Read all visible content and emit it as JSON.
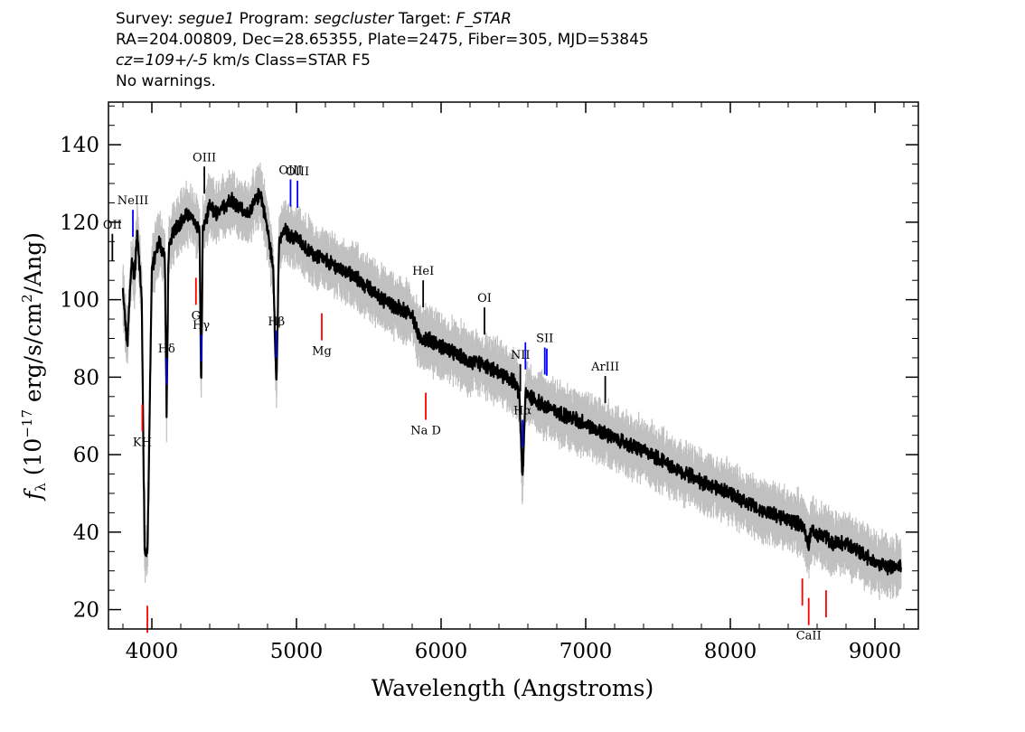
{
  "header": {
    "survey_label": "Survey:",
    "survey": "segue1",
    "program_label": "Program:",
    "program": "segcluster",
    "target_label": "Target:",
    "target": "F_STAR",
    "line2": "RA=204.00809, Dec=28.65355, Plate=2475, Fiber=305, MJD=53845",
    "cz": "cz=109+/-5",
    "line3_rest": " km/s Class=STAR F5",
    "line4": "No warnings."
  },
  "colors": {
    "flux": "#000000",
    "error": "#c0c0c0",
    "emission": "#0000ff",
    "absorption": "#ff0000",
    "other": "#000000"
  },
  "chart_data": {
    "type": "line",
    "title": "",
    "xlabel": "Wavelength (Angstroms)",
    "ylabel_prefix": "f",
    "ylabel_sub": "λ",
    "ylabel_main": " (10",
    "ylabel_exp": "−17",
    "ylabel_mid": " erg/s/cm",
    "ylabel_exp2": "2",
    "ylabel_end": "/Ang)",
    "xlim": [
      3700,
      9300
    ],
    "ylim": [
      15,
      151
    ],
    "xticks": [
      4000,
      5000,
      6000,
      7000,
      8000,
      9000
    ],
    "yticks": [
      20,
      40,
      60,
      80,
      100,
      120,
      140
    ],
    "series": [
      {
        "role": "flux",
        "x": [
          3800,
          3830,
          3860,
          3880,
          3900,
          3930,
          3950,
          3970,
          4000,
          4050,
          4090,
          4102,
          4115,
          4150,
          4200,
          4250,
          4300,
          4330,
          4341,
          4352,
          4400,
          4450,
          4500,
          4550,
          4600,
          4650,
          4700,
          4750,
          4800,
          4840,
          4861,
          4880,
          4920,
          4960,
          5000,
          5100,
          5200,
          5300,
          5400,
          5500,
          5600,
          5700,
          5800,
          5850,
          5900,
          6000,
          6100,
          6200,
          6300,
          6400,
          6500,
          6540,
          6563,
          6585,
          6650,
          6800,
          7000,
          7200,
          7400,
          7600,
          7800,
          8000,
          8200,
          8400,
          8500,
          8542,
          8560,
          8600,
          8662,
          8700,
          8800,
          8900,
          9000,
          9100,
          9180
        ],
        "y": [
          102,
          88,
          110,
          106,
          118,
          100,
          35,
          35,
          108,
          115,
          111,
          70,
          112,
          118,
          120,
          122,
          120,
          118,
          76,
          118,
          124,
          122,
          124,
          126,
          124,
          122,
          124,
          128,
          118,
          108,
          77,
          115,
          118,
          116,
          116,
          112,
          110,
          108,
          106,
          103,
          100,
          98,
          96,
          90,
          90,
          88,
          86,
          84,
          83,
          81,
          79,
          76,
          54,
          76,
          74,
          71,
          68,
          64,
          61,
          57,
          53,
          50,
          46,
          43,
          42,
          37,
          41,
          39,
          39,
          37,
          37,
          35,
          32,
          31,
          31
        ]
      }
    ],
    "lines": [
      {
        "label": "OII",
        "x": 3727,
        "kind": "other"
      },
      {
        "label": "NeIII",
        "x": 3869,
        "kind": "emission"
      },
      {
        "label": "K",
        "x": 3934,
        "kind": "absorption"
      },
      {
        "label": "H",
        "x": 3969,
        "kind": "absorption"
      },
      {
        "label": "Hδ",
        "x": 4102,
        "kind": "emission"
      },
      {
        "label": "G",
        "x": 4305,
        "kind": "absorption"
      },
      {
        "label": "Hγ",
        "x": 4341,
        "kind": "emission"
      },
      {
        "label": "OIII",
        "x": 4363,
        "kind": "other"
      },
      {
        "label": "Hβ",
        "x": 4861,
        "kind": "emission"
      },
      {
        "label": "OIII",
        "x": 4959,
        "kind": "emission"
      },
      {
        "label": "OIII",
        "x": 5007,
        "kind": "emission"
      },
      {
        "label": "Mg",
        "x": 5175,
        "kind": "absorption"
      },
      {
        "label": "HeI",
        "x": 5876,
        "kind": "other"
      },
      {
        "label": "Na D",
        "x": 5894,
        "kind": "absorption"
      },
      {
        "label": "OI",
        "x": 6300,
        "kind": "other"
      },
      {
        "label": "NII",
        "x": 6548,
        "kind": "other"
      },
      {
        "label": "Hα",
        "x": 6563,
        "kind": "emission"
      },
      {
        "label": "NII",
        "x": 6583,
        "kind": "emission"
      },
      {
        "label": "SII",
        "x": 6717,
        "kind": "emission"
      },
      {
        "label": "SII",
        "x": 6731,
        "kind": "emission"
      },
      {
        "label": "ArIII",
        "x": 7135,
        "kind": "other"
      },
      {
        "label": "CaII",
        "x": 8498,
        "kind": "absorption"
      },
      {
        "label": "CaII",
        "x": 8542,
        "kind": "absorption"
      },
      {
        "label": "CaII",
        "x": 8662,
        "kind": "absorption"
      }
    ]
  }
}
